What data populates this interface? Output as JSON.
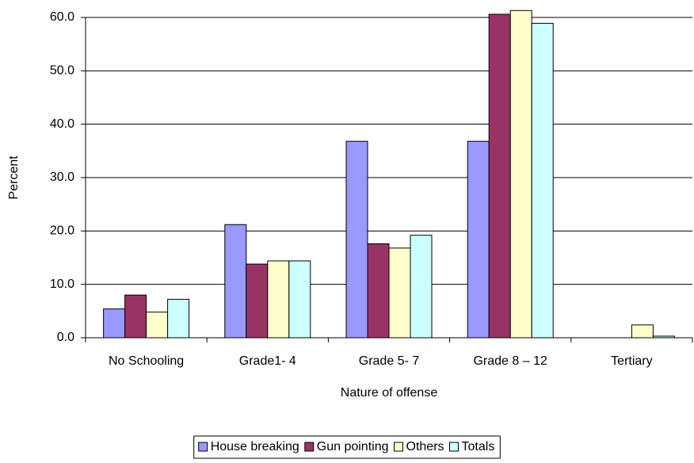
{
  "chart_data": {
    "type": "bar",
    "x_label": "Nature of offense",
    "y_label": "Percent",
    "categories": [
      "No Schooling",
      "Grade1- 4",
      "Grade 5- 7",
      "Grade 8 – 12",
      "Tertiary"
    ],
    "series": [
      {
        "name": "House breaking",
        "color": "#9999ff",
        "values": [
          5.4,
          21.2,
          36.8,
          36.8,
          0
        ]
      },
      {
        "name": "Gun pointing",
        "color": "#993366",
        "values": [
          8.0,
          13.8,
          17.6,
          60.6,
          0
        ]
      },
      {
        "name": "Others",
        "color": "#ffffcc",
        "values": [
          4.8,
          14.4,
          16.8,
          61.3,
          2.4
        ]
      },
      {
        "name": "Totals",
        "color": "#ccffff",
        "values": [
          7.2,
          14.4,
          19.2,
          58.9,
          0.3
        ]
      }
    ],
    "ylim": [
      0,
      60
    ],
    "yticks": [
      {
        "value": 0,
        "label": "0.0"
      },
      {
        "value": 10,
        "label": "10.0"
      },
      {
        "value": 20,
        "label": "20.0"
      },
      {
        "value": 30,
        "label": "30.0"
      },
      {
        "value": 40,
        "label": "40.0"
      },
      {
        "value": 50,
        "label": "50.0"
      },
      {
        "value": 60,
        "label": "60.0"
      }
    ],
    "grid": true,
    "legend": "bottom"
  }
}
